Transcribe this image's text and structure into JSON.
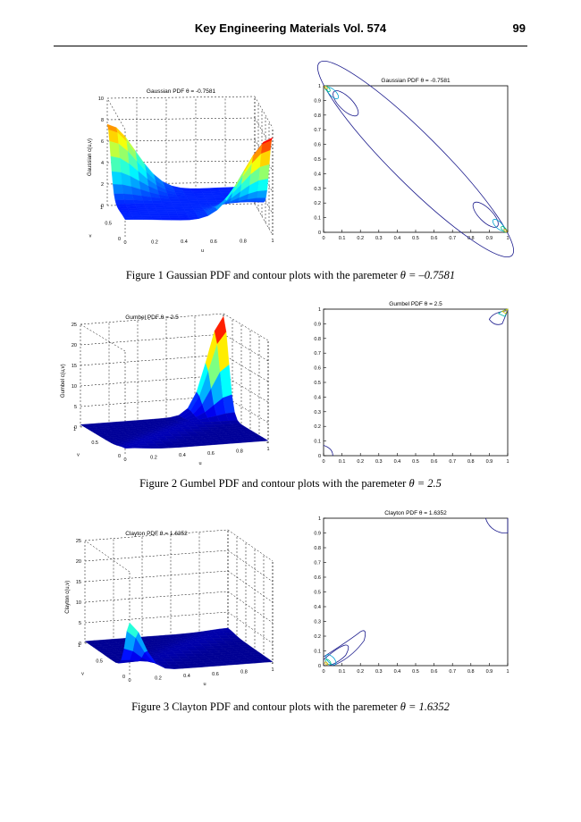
{
  "header": {
    "journal": "Key Engineering Materials Vol. 574",
    "page_number": "99"
  },
  "chart_data": [
    {
      "type": "surface3d",
      "figure": 1,
      "panel": "surface",
      "title": "Gaussian PDF",
      "theta_label": "θ = -0.7581",
      "xlabel": "u",
      "ylabel": "v",
      "zlabel": "Gaussian c(u,v)",
      "zlim": [
        0,
        10
      ],
      "z_ticks": [
        "0",
        "2",
        "4",
        "6",
        "8",
        "10"
      ],
      "u_ticks": [
        "0",
        "0.2",
        "0.4",
        "0.6",
        "0.8",
        "1"
      ],
      "v_ticks": [
        "0",
        "0.5",
        "1"
      ],
      "description_values": {
        "peak_near_u0_v1": 7.5,
        "peak_near_u1_v0": 8,
        "floor_level": 1
      }
    },
    {
      "type": "contour",
      "figure": 1,
      "panel": "contour",
      "title": "Gaussian PDF",
      "theta_label": "θ = -0.7581",
      "xlim": [
        0,
        1
      ],
      "ylim": [
        0,
        1
      ],
      "x_ticks": [
        "0",
        "0.1",
        "0.2",
        "0.3",
        "0.4",
        "0.5",
        "0.6",
        "0.7",
        "0.8",
        "0.9",
        "1"
      ],
      "y_ticks": [
        "0",
        "0.1",
        "0.2",
        "0.3",
        "0.4",
        "0.5",
        "0.6",
        "0.7",
        "0.8",
        "0.9",
        "1"
      ]
    },
    {
      "type": "surface3d",
      "figure": 2,
      "panel": "surface",
      "title": "Gumbel PDF",
      "theta_label": "θ = 2.5",
      "xlabel": "u",
      "ylabel": "v",
      "zlabel": "Gumbel c(u,v)",
      "zlim": [
        0,
        25
      ],
      "z_ticks": [
        "0",
        "5",
        "10",
        "15",
        "20",
        "25"
      ],
      "u_ticks": [
        "0",
        "0.2",
        "0.4",
        "0.6",
        "0.8",
        "1"
      ],
      "v_ticks": [
        "0",
        "0.5",
        "1"
      ],
      "description_values": {
        "peak_near_u1_v1": 24
      }
    },
    {
      "type": "contour",
      "figure": 2,
      "panel": "contour",
      "title": "Gumbel PDF",
      "theta_label": "θ = 2.5",
      "xlim": [
        0,
        1
      ],
      "ylim": [
        0,
        1
      ],
      "x_ticks": [
        "0",
        "0.1",
        "0.2",
        "0.3",
        "0.4",
        "0.5",
        "0.6",
        "0.7",
        "0.8",
        "0.9",
        "1"
      ],
      "y_ticks": [
        "0",
        "0.1",
        "0.2",
        "0.3",
        "0.4",
        "0.5",
        "0.6",
        "0.7",
        "0.8",
        "0.9",
        "1"
      ]
    },
    {
      "type": "surface3d",
      "figure": 3,
      "panel": "surface",
      "title": "Clayton PDF",
      "theta_label": "θ = 1.6352",
      "xlabel": "u",
      "ylabel": "v",
      "zlabel": "Clayton c(u,v)",
      "zlim": [
        0,
        25
      ],
      "z_ticks": [
        "0",
        "5",
        "10",
        "15",
        "20",
        "25"
      ],
      "u_ticks": [
        "0",
        "0.2",
        "0.4",
        "0.6",
        "0.8",
        "1"
      ],
      "v_ticks": [
        "0",
        "0.5",
        "1"
      ],
      "description_values": {
        "peak_near_u0_v0": 12
      }
    },
    {
      "type": "contour",
      "figure": 3,
      "panel": "contour",
      "title": "Clayton PDF",
      "theta_label": "θ = 1.6352",
      "xlim": [
        0,
        1
      ],
      "ylim": [
        0,
        1
      ],
      "x_ticks": [
        "0",
        "0.1",
        "0.2",
        "0.3",
        "0.4",
        "0.5",
        "0.6",
        "0.7",
        "0.8",
        "0.9",
        "1"
      ],
      "y_ticks": [
        "0",
        "0.1",
        "0.2",
        "0.3",
        "0.4",
        "0.5",
        "0.6",
        "0.7",
        "0.8",
        "0.9",
        "1"
      ]
    }
  ],
  "captions": [
    {
      "text": "Figure 1 Gaussian PDF and contour plots with the paremeter",
      "theta": "θ = –0.7581"
    },
    {
      "text": "Figure 2 Gumbel PDF and contour plots with the paremeter",
      "theta": "θ = 2.5"
    },
    {
      "text": "Figure 3 Clayton PDF and contour plots with the paremeter",
      "theta": "θ = 1.6352"
    }
  ]
}
